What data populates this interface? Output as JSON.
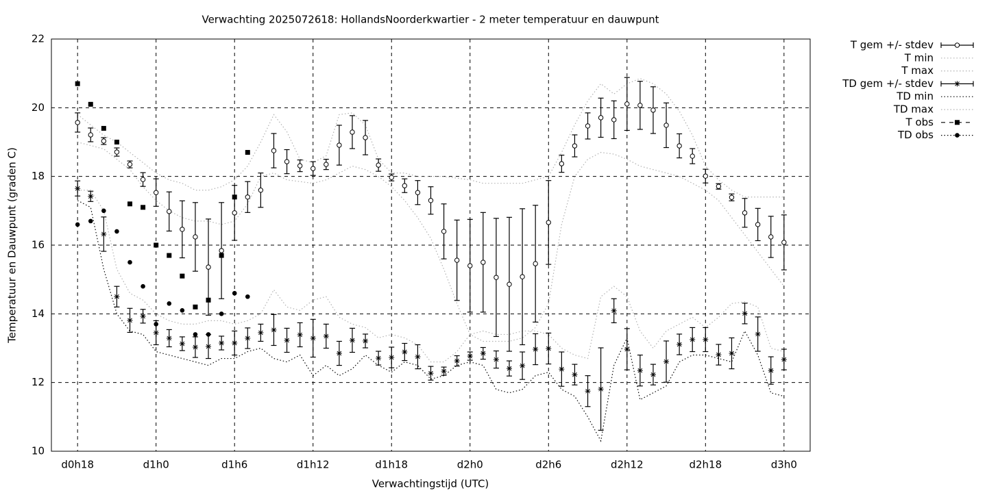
{
  "chart_data": {
    "type": "line",
    "title": "Verwachting 2025072618: HollandsNoorderkwartier - 2 meter temperatuur en dauwpunt",
    "xlabel": "Verwachtingstijd (UTC)",
    "ylabel": "Temperatuur en Dauwpunt (graden C)",
    "x": [
      0,
      1,
      2,
      3,
      4,
      5,
      6,
      7,
      8,
      9,
      10,
      11,
      12,
      13,
      14,
      15,
      16,
      17,
      18,
      19,
      20,
      21,
      22,
      23,
      24,
      25,
      26,
      27,
      28,
      29,
      30,
      31,
      32,
      33,
      34,
      35,
      36,
      37,
      38,
      39,
      40,
      41,
      42,
      43,
      44,
      45,
      46,
      47,
      48,
      49,
      50,
      51,
      52,
      53,
      54
    ],
    "xlim": [
      -2,
      56
    ],
    "xticks": [
      {
        "value": 0,
        "label": "d0h18"
      },
      {
        "value": 6,
        "label": "d1h0"
      },
      {
        "value": 12,
        "label": "d1h6"
      },
      {
        "value": 18,
        "label": "d1h12"
      },
      {
        "value": 24,
        "label": "d1h18"
      },
      {
        "value": 30,
        "label": "d2h0"
      },
      {
        "value": 36,
        "label": "d2h6"
      },
      {
        "value": 42,
        "label": "d2h12"
      },
      {
        "value": 48,
        "label": "d2h18"
      },
      {
        "value": 54,
        "label": "d3h0"
      }
    ],
    "ylim": [
      10,
      22
    ],
    "yticks": [
      10,
      12,
      14,
      16,
      18,
      20,
      22
    ],
    "grid": true,
    "legend": "outside-right-top",
    "series": [
      {
        "name": "T gem +/- stdev",
        "color": "#000000",
        "style": "errorbars",
        "marker": "circle",
        "values": [
          19.57,
          19.21,
          19.03,
          18.71,
          18.35,
          17.91,
          17.53,
          16.98,
          16.46,
          16.24,
          15.36,
          15.84,
          16.94,
          17.4,
          17.6,
          18.75,
          18.43,
          18.31,
          18.23,
          18.35,
          18.91,
          19.29,
          19.13,
          18.33,
          17.97,
          17.73,
          17.53,
          17.3,
          16.4,
          15.56,
          15.4,
          15.5,
          15.06,
          14.86,
          15.08,
          15.46,
          16.66,
          18.37,
          18.89,
          19.47,
          19.71,
          19.65,
          20.11,
          20.07,
          19.93,
          19.49,
          18.89,
          18.59,
          18.01,
          17.71,
          17.39,
          16.94,
          16.6,
          16.24,
          16.08
        ],
        "errors": [
          0.28,
          0.2,
          0.1,
          0.12,
          0.1,
          0.2,
          0.4,
          0.57,
          0.83,
          1.0,
          1.4,
          1.4,
          0.8,
          0.45,
          0.5,
          0.5,
          0.35,
          0.17,
          0.2,
          0.15,
          0.58,
          0.48,
          0.5,
          0.18,
          0.1,
          0.2,
          0.35,
          0.4,
          0.8,
          1.17,
          1.35,
          1.45,
          1.72,
          1.95,
          1.98,
          1.7,
          1.22,
          0.25,
          0.32,
          0.38,
          0.57,
          0.55,
          0.77,
          0.7,
          0.68,
          0.65,
          0.35,
          0.22,
          0.2,
          0.08,
          0.1,
          0.42,
          0.47,
          0.6,
          0.8
        ]
      },
      {
        "name": "T min",
        "color": "#b0b0b0",
        "style": "line",
        "dash": "dotted",
        "values": [
          19.0,
          18.9,
          18.8,
          18.5,
          18.2,
          17.7,
          17.3,
          17.0,
          16.8,
          16.7,
          16.7,
          16.6,
          16.7,
          17.2,
          18.0,
          18.1,
          17.9,
          17.85,
          17.8,
          17.9,
          18.1,
          18.3,
          18.2,
          18.0,
          17.7,
          17.3,
          16.8,
          16.2,
          15.3,
          14.3,
          13.4,
          13.2,
          13.2,
          13.2,
          13.3,
          13.6,
          14.3,
          16.6,
          18.0,
          18.5,
          18.7,
          18.65,
          18.5,
          18.3,
          18.2,
          18.1,
          18.0,
          17.8,
          17.6,
          17.3,
          16.8,
          16.3,
          15.8,
          15.3,
          14.8
        ]
      },
      {
        "name": "T max",
        "color": "#b0b0b0",
        "style": "line",
        "dash": "dotted",
        "values": [
          19.8,
          19.5,
          19.2,
          19.0,
          18.7,
          18.4,
          18.1,
          17.9,
          17.8,
          17.6,
          17.6,
          17.7,
          17.9,
          18.3,
          19.0,
          19.8,
          19.3,
          18.5,
          18.4,
          18.6,
          19.8,
          19.85,
          19.5,
          18.5,
          18.1,
          18.1,
          18.0,
          18.0,
          18.0,
          17.95,
          17.9,
          17.8,
          17.8,
          17.8,
          17.8,
          17.9,
          18.0,
          18.7,
          19.5,
          20.2,
          20.7,
          20.4,
          20.7,
          20.85,
          20.7,
          20.4,
          19.9,
          19.2,
          18.3,
          17.9,
          17.6,
          17.4,
          17.4,
          17.4,
          17.4
        ]
      },
      {
        "name": "TD gem +/- stdev",
        "color": "#000000",
        "style": "errorbars",
        "marker": "star",
        "values": [
          17.65,
          17.42,
          16.32,
          14.5,
          13.81,
          13.93,
          13.45,
          13.29,
          13.13,
          13.03,
          13.05,
          13.15,
          13.15,
          13.29,
          13.45,
          13.53,
          13.23,
          13.39,
          13.29,
          13.35,
          12.85,
          13.23,
          13.21,
          12.71,
          12.73,
          12.89,
          12.75,
          12.27,
          12.33,
          12.63,
          12.77,
          12.85,
          12.67,
          12.41,
          12.49,
          12.97,
          12.99,
          12.39,
          12.23,
          11.75,
          11.81,
          14.09,
          12.97,
          12.35,
          12.23,
          12.61,
          13.11,
          13.25,
          13.25,
          12.81,
          12.85,
          14.01,
          13.41,
          12.35,
          12.67
        ],
        "errors": [
          0.22,
          0.15,
          0.5,
          0.3,
          0.35,
          0.2,
          0.35,
          0.25,
          0.2,
          0.3,
          0.35,
          0.2,
          0.35,
          0.3,
          0.25,
          0.45,
          0.35,
          0.35,
          0.55,
          0.35,
          0.35,
          0.35,
          0.2,
          0.2,
          0.3,
          0.25,
          0.35,
          0.2,
          0.12,
          0.15,
          0.12,
          0.17,
          0.25,
          0.22,
          0.4,
          0.45,
          0.45,
          0.5,
          0.3,
          0.45,
          1.2,
          0.35,
          0.6,
          0.45,
          0.3,
          0.6,
          0.3,
          0.35,
          0.35,
          0.3,
          0.45,
          0.3,
          0.5,
          0.4,
          0.3
        ]
      },
      {
        "name": "TD min",
        "color": "#000000",
        "style": "line",
        "dash": "dotted",
        "values": [
          17.3,
          17.1,
          15.3,
          14.0,
          13.5,
          13.4,
          12.9,
          12.8,
          12.7,
          12.6,
          12.5,
          12.7,
          12.7,
          12.9,
          13.0,
          12.7,
          12.6,
          12.8,
          12.2,
          12.5,
          12.2,
          12.4,
          12.8,
          12.5,
          12.3,
          12.6,
          12.5,
          12.1,
          12.2,
          12.5,
          12.6,
          12.5,
          11.8,
          11.7,
          11.8,
          12.2,
          12.3,
          11.8,
          11.6,
          11.0,
          10.3,
          12.5,
          13.3,
          11.5,
          11.7,
          11.9,
          12.6,
          12.8,
          12.8,
          12.7,
          12.6,
          13.5,
          12.8,
          11.7,
          11.6
        ]
      },
      {
        "name": "TD max",
        "color": "#b0b0b0",
        "style": "line",
        "dash": "dotted",
        "values": [
          17.6,
          17.6,
          17.0,
          15.3,
          14.6,
          14.4,
          14.0,
          13.8,
          13.7,
          13.7,
          13.8,
          13.8,
          13.7,
          13.8,
          14.0,
          14.7,
          14.2,
          14.1,
          14.4,
          14.5,
          13.9,
          13.7,
          13.6,
          13.3,
          13.4,
          13.3,
          13.1,
          12.6,
          12.6,
          12.9,
          13.4,
          13.5,
          13.4,
          13.4,
          13.5,
          13.5,
          13.4,
          13.0,
          12.8,
          12.7,
          14.5,
          14.8,
          14.5,
          13.5,
          13.0,
          13.5,
          13.7,
          13.9,
          13.6,
          13.9,
          14.3,
          14.35,
          14.2,
          13.0,
          12.9
        ]
      },
      {
        "name": "T obs",
        "color": "#000000",
        "style": "points",
        "marker": "square",
        "values": [
          20.7,
          20.1,
          19.4,
          19.0,
          17.2,
          17.1,
          16.0,
          15.7,
          15.1,
          14.2,
          14.4,
          15.7,
          17.4,
          18.7,
          null,
          null,
          null,
          null,
          null,
          null,
          null,
          null,
          null,
          null,
          null,
          null,
          null,
          null,
          null,
          null,
          null,
          null,
          null,
          null,
          null,
          null,
          null,
          null,
          null,
          null,
          null,
          null,
          null,
          null,
          null,
          null,
          null,
          null,
          null,
          null,
          null,
          null,
          null,
          null,
          null
        ]
      },
      {
        "name": "TD obs",
        "color": "#000000",
        "style": "points",
        "marker": "dot",
        "values": [
          16.6,
          16.7,
          17.0,
          16.4,
          15.5,
          14.8,
          13.7,
          14.3,
          14.1,
          13.4,
          13.4,
          14.0,
          14.6,
          14.5,
          null,
          null,
          null,
          null,
          null,
          null,
          null,
          null,
          null,
          null,
          null,
          null,
          null,
          null,
          null,
          null,
          null,
          null,
          null,
          null,
          null,
          null,
          null,
          null,
          null,
          null,
          null,
          null,
          null,
          null,
          null,
          null,
          null,
          null,
          null,
          null,
          null,
          null,
          null,
          null,
          null
        ]
      }
    ]
  }
}
